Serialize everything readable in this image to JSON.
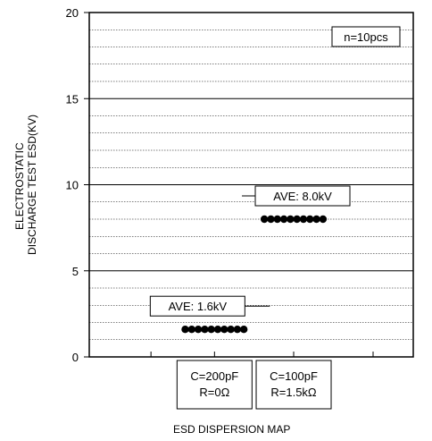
{
  "chart_data": {
    "type": "scatter",
    "title": "",
    "xlabel": "ESD DISPERSION MAP",
    "ylabel_lines": [
      "ELECTROSTATIC",
      "DISCHARGE TEST ESD(KV)"
    ],
    "ylim": [
      0,
      20
    ],
    "yticks": [
      0,
      5,
      10,
      15,
      20
    ],
    "minor_grid_step": 1,
    "grid": true,
    "legend_note": "n=10pcs",
    "categories": [
      {
        "lines": [
          "C=200pF",
          "R=0Ω"
        ]
      },
      {
        "lines": [
          "C=100pF",
          "R=1.5kΩ"
        ]
      }
    ],
    "series": [
      {
        "category_index": 0,
        "values": [
          1.6,
          1.6,
          1.6,
          1.6,
          1.6,
          1.6,
          1.6,
          1.6,
          1.6,
          1.6
        ],
        "annotation": "AVE: 1.6kV"
      },
      {
        "category_index": 1,
        "values": [
          8.0,
          8.0,
          8.0,
          8.0,
          8.0,
          8.0,
          8.0,
          8.0,
          8.0,
          8.0
        ],
        "annotation": "AVE: 8.0kV"
      }
    ],
    "colors": {
      "marker": "#000000",
      "grid": "#000000",
      "background": "#ffffff"
    }
  }
}
